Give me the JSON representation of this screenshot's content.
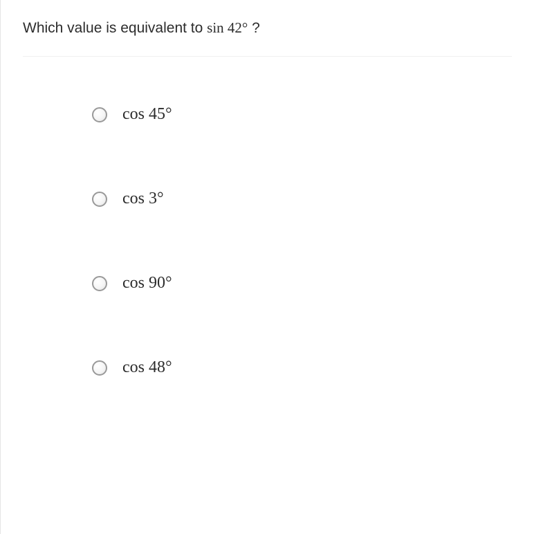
{
  "question": {
    "prefix": "Which value is equivalent to ",
    "math_function": "sin",
    "math_argument": "42°",
    "suffix": "?"
  },
  "options": [
    {
      "function": "cos",
      "argument": "45°"
    },
    {
      "function": "cos",
      "argument": "3°"
    },
    {
      "function": "cos",
      "argument": "90°"
    },
    {
      "function": "cos",
      "argument": "48°"
    }
  ],
  "styles": {
    "question_fontsize": 21,
    "option_fontsize": 24,
    "text_color": "#2c2c2c",
    "radio_border_color": "#999999",
    "divider_color": "#f0f0f0",
    "background_color": "#ffffff"
  }
}
